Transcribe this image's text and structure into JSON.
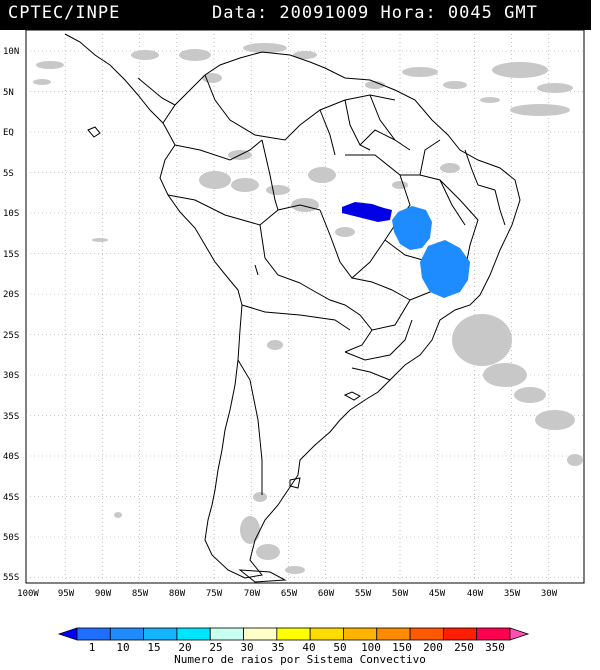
{
  "header": {
    "source": "CPTEC/INPE",
    "info": "Data: 20091009 Hora: 0045 GMT"
  },
  "map": {
    "lat_labels": [
      "10N",
      "5N",
      "EQ",
      "5S",
      "10S",
      "15S",
      "20S",
      "25S",
      "30S",
      "35S",
      "40S",
      "45S",
      "50S",
      "55S"
    ],
    "lon_labels": [
      "100W",
      "95W",
      "90W",
      "85W",
      "80W",
      "75W",
      "70W",
      "65W",
      "60W",
      "55W",
      "50W",
      "45W",
      "40W",
      "35W",
      "30W"
    ],
    "cloud_color": "#c8c8c8",
    "system_colors": {
      "dark_blue": "#0000e6",
      "light_blue": "#1e8cff"
    },
    "grid": "dotted"
  },
  "colorbar": {
    "labels": [
      "1",
      "10",
      "15",
      "20",
      "25",
      "30",
      "35",
      "40",
      "50",
      "100",
      "150",
      "200",
      "250",
      "350"
    ],
    "colors": [
      "#0000ff",
      "#1e6eff",
      "#1e8cff",
      "#16b4ff",
      "#00e5ff",
      "#c8fff0",
      "#ffffc8",
      "#ffff00",
      "#ffdc00",
      "#ffb400",
      "#ff8c00",
      "#ff5a00",
      "#ff1e00",
      "#ff0050",
      "#ff50b4"
    ],
    "title": "Numero de raios por Sistema Convectivo"
  }
}
